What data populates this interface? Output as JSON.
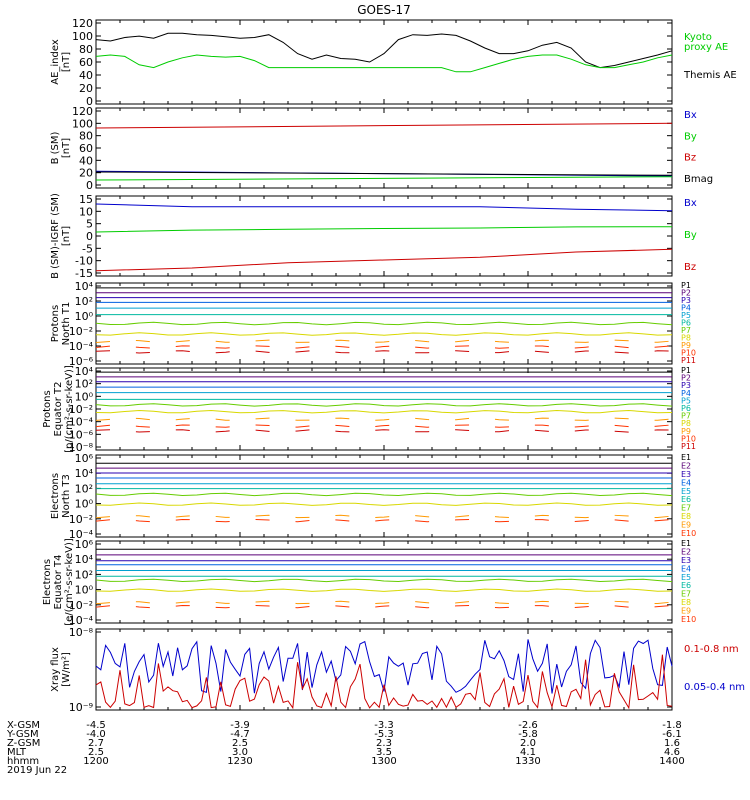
{
  "title": "GOES-17",
  "colors": {
    "black": "#000000",
    "blue": "#0000cc",
    "green": "#00cc00",
    "red": "#cc0000",
    "p": [
      "#000000",
      "#5a0078",
      "#2a00b0",
      "#0060e0",
      "#00a0d0",
      "#00b8a0",
      "#66cc00",
      "#d8d800",
      "#ff9900",
      "#ff3300",
      "#cc0000"
    ]
  },
  "panels": [
    {
      "id": "ae",
      "ylabel": [
        "AE_index",
        "[nT]"
      ],
      "ticks": [
        "120",
        "100",
        "80",
        "60",
        "40",
        "20",
        "0"
      ],
      "legend": [
        {
          "text": "Kyoto",
          "color": "#00cc00"
        },
        {
          "text": "proxy AE",
          "color": "#00cc00"
        },
        {
          "text": "Themis AE",
          "color": "#000000"
        }
      ]
    },
    {
      "id": "b",
      "ylabel": [
        "B (SM)",
        "[nT]"
      ],
      "ticks": [
        "120",
        "100",
        "80",
        "60",
        "40",
        "20",
        "0"
      ],
      "legend": [
        {
          "text": "Bx",
          "color": "#0000cc"
        },
        {
          "text": "By",
          "color": "#00cc00"
        },
        {
          "text": "Bz",
          "color": "#cc0000"
        },
        {
          "text": "Bmag",
          "color": "#000000"
        }
      ]
    },
    {
      "id": "bigrf",
      "ylabel": [
        "B (SM)-IGRF (SM)",
        "[nT]"
      ],
      "ticks": [
        "15",
        "10",
        "5",
        "0",
        "-5",
        "-10",
        "-15"
      ],
      "legend": [
        {
          "text": "Bx",
          "color": "#0000cc"
        },
        {
          "text": "By",
          "color": "#00cc00"
        },
        {
          "text": "Bz",
          "color": "#cc0000"
        }
      ]
    },
    {
      "id": "pn",
      "ylabel": [
        "Protons",
        "North T1"
      ],
      "ticks": [
        "10⁴",
        "10²",
        "10⁰",
        "10⁻²",
        "10⁻⁴",
        "10⁻⁶"
      ],
      "legend": [
        {
          "text": "P1"
        },
        {
          "text": "P2"
        },
        {
          "text": "P3"
        },
        {
          "text": "P4"
        },
        {
          "text": "P5"
        },
        {
          "text": "P6"
        },
        {
          "text": "P7"
        },
        {
          "text": "P8"
        },
        {
          "text": "P9"
        },
        {
          "text": "P10"
        },
        {
          "text": "P11"
        }
      ]
    },
    {
      "id": "pe",
      "ylabel": [
        "Protons",
        "Equator T2",
        "[p/(cm²-s-sr-keV)]"
      ],
      "ticks": [
        "10⁴",
        "10²",
        "10⁰",
        "10⁻²",
        "10⁻⁴",
        "10⁻⁶",
        "10⁻⁸"
      ],
      "legend": [
        {
          "text": "P1"
        },
        {
          "text": "P2"
        },
        {
          "text": "P3"
        },
        {
          "text": "P4"
        },
        {
          "text": "P5"
        },
        {
          "text": "P6"
        },
        {
          "text": "P7"
        },
        {
          "text": "P8"
        },
        {
          "text": "P9"
        },
        {
          "text": "P10"
        },
        {
          "text": "P11"
        }
      ]
    },
    {
      "id": "en",
      "ylabel": [
        "Electrons",
        "North T3"
      ],
      "ticks": [
        "10⁶",
        "10⁴",
        "10²",
        "10⁰",
        "10⁻²",
        "10⁻⁴"
      ],
      "legend": [
        {
          "text": "E1"
        },
        {
          "text": "E2"
        },
        {
          "text": "E3"
        },
        {
          "text": "E4"
        },
        {
          "text": "E5"
        },
        {
          "text": "E6"
        },
        {
          "text": "E7"
        },
        {
          "text": "E8"
        },
        {
          "text": "E9"
        },
        {
          "text": "E10"
        }
      ]
    },
    {
      "id": "ee",
      "ylabel": [
        "Electrons",
        "Equator T4",
        "[e/(cm²-s-sr-keV)]"
      ],
      "ticks": [
        "10⁶",
        "10⁴",
        "10²",
        "10⁰",
        "10⁻²",
        "10⁻⁴"
      ],
      "legend": [
        {
          "text": "E1"
        },
        {
          "text": "E2"
        },
        {
          "text": "E3"
        },
        {
          "text": "E4"
        },
        {
          "text": "E5"
        },
        {
          "text": "E6"
        },
        {
          "text": "E7"
        },
        {
          "text": "E8"
        },
        {
          "text": "E9"
        },
        {
          "text": "E10"
        }
      ]
    },
    {
      "id": "xray",
      "ylabel": [
        "Xray flux",
        "[W/m²]"
      ],
      "ticks": [
        "10⁻⁸",
        "10⁻⁹"
      ],
      "legend": [
        {
          "text": "0.1-0.8 nm",
          "color": "#cc0000"
        },
        {
          "text": "0.05-0.4 nm",
          "color": "#0000cc"
        }
      ]
    }
  ],
  "xaxis": {
    "row_labels": [
      "X-GSM",
      "Y-GSM",
      "Z-GSM",
      "MLT",
      "hhmm",
      "2019 Jun 22"
    ],
    "columns": [
      [
        "-4.5",
        "-4.0",
        "2.7",
        "2.5",
        "1200"
      ],
      [
        "-3.9",
        "-4.7",
        "2.5",
        "3.0",
        "1230"
      ],
      [
        "-3.3",
        "-5.3",
        "2.3",
        "3.5",
        "1300"
      ],
      [
        "-2.6",
        "-5.8",
        "2.0",
        "4.1",
        "1330"
      ],
      [
        "-1.8",
        "-6.1",
        "1.6",
        "4.6",
        "1400"
      ]
    ]
  },
  "chart_data": [
    {
      "type": "line",
      "title": "AE_index",
      "ylim": [
        0,
        120
      ],
      "x": [
        0,
        3,
        6,
        9,
        12,
        15,
        18,
        21,
        24,
        27,
        30,
        33,
        36,
        39,
        42,
        45,
        48,
        51,
        54,
        57,
        60,
        63,
        66,
        69,
        72,
        75,
        78,
        81,
        84,
        87,
        90,
        93,
        96,
        99,
        102,
        105,
        108,
        111,
        114,
        117,
        120
      ],
      "series": [
        {
          "name": "Themis AE",
          "color": "#000000",
          "values": [
            92,
            90,
            95,
            97,
            94,
            101,
            101,
            99,
            98,
            96,
            94,
            95,
            99,
            88,
            72,
            64,
            70,
            65,
            64,
            60,
            72,
            92,
            99,
            98,
            100,
            98,
            90,
            80,
            72,
            72,
            76,
            84,
            88,
            80,
            60,
            52,
            55,
            60,
            65,
            70,
            76
          ]
        },
        {
          "name": "Kyoto proxy AE",
          "color": "#00cc00",
          "values": [
            68,
            70,
            68,
            56,
            52,
            60,
            66,
            70,
            68,
            67,
            68,
            62,
            52,
            52,
            52,
            52,
            52,
            52,
            52,
            52,
            52,
            52,
            52,
            52,
            52,
            46,
            46,
            52,
            58,
            64,
            68,
            70,
            70,
            64,
            56,
            52,
            52,
            56,
            60,
            66,
            70
          ]
        }
      ]
    },
    {
      "type": "line",
      "title": "B (SM)",
      "ylim": [
        0,
        120
      ],
      "x": [
        0,
        120
      ],
      "series": [
        {
          "name": "Bz",
          "color": "#cc0000",
          "values": [
            90,
            97
          ]
        },
        {
          "name": "Bx",
          "color": "#0000cc",
          "values": [
            25,
            18
          ]
        },
        {
          "name": "Bmag",
          "color": "#000000",
          "values": [
            24,
            19
          ]
        },
        {
          "name": "By",
          "color": "#00cc00",
          "values": [
            12,
            17
          ]
        }
      ]
    },
    {
      "type": "line",
      "title": "B (SM)-IGRF (SM)",
      "ylim": [
        -15,
        15
      ],
      "x": [
        0,
        20,
        40,
        60,
        80,
        100,
        120
      ],
      "series": [
        {
          "name": "Bx",
          "color": "#0000cc",
          "values": [
            12,
            11,
            11,
            11,
            11,
            10,
            9.5
          ]
        },
        {
          "name": "By",
          "color": "#00cc00",
          "values": [
            1.5,
            2.2,
            2.5,
            2.8,
            3.0,
            3.4,
            3.5
          ]
        },
        {
          "name": "Bz",
          "color": "#cc0000",
          "values": [
            -13,
            -12,
            -10,
            -9,
            -8,
            -6,
            -5
          ]
        }
      ]
    },
    {
      "type": "line",
      "title": "Protons North T1",
      "yscale": "log",
      "ylim": [
        -6,
        4
      ],
      "x": [
        0,
        120
      ],
      "levels": [
        3.4,
        2.8,
        2.2,
        1.6,
        0.9,
        0.1,
        -1.0,
        -2.3,
        -3.2,
        -3.9,
        -4.5
      ]
    },
    {
      "type": "line",
      "title": "Protons Equator T2",
      "yscale": "log",
      "ylim": [
        -8,
        4
      ],
      "x": [
        0,
        120
      ],
      "levels": [
        3.4,
        2.7,
        2.0,
        1.2,
        0.4,
        -0.6,
        -1.4,
        -2.4,
        -3.5,
        -4.5,
        -5.2
      ]
    },
    {
      "type": "line",
      "title": "Electrons North T3",
      "yscale": "log",
      "ylim": [
        -4,
        6
      ],
      "x": [
        0,
        120
      ],
      "levels": [
        5.0,
        4.4,
        3.8,
        3.2,
        2.5,
        1.9,
        1.2,
        0.0,
        -1.5,
        -2.0
      ]
    },
    {
      "type": "line",
      "title": "Electrons Equator T4",
      "yscale": "log",
      "ylim": [
        -4,
        6
      ],
      "x": [
        0,
        120
      ],
      "levels": [
        5.0,
        4.3,
        3.6,
        3.1,
        2.4,
        1.7,
        1.2,
        0.0,
        -1.5,
        -2.0
      ]
    },
    {
      "type": "line",
      "title": "Xray flux",
      "yscale": "log",
      "ylim": [
        -9.05,
        -8
      ],
      "x": [
        0,
        120
      ],
      "series": [
        {
          "name": "0.05-0.4 nm",
          "color": "#0000cc"
        },
        {
          "name": "0.1-0.8 nm",
          "color": "#cc0000"
        }
      ]
    }
  ]
}
